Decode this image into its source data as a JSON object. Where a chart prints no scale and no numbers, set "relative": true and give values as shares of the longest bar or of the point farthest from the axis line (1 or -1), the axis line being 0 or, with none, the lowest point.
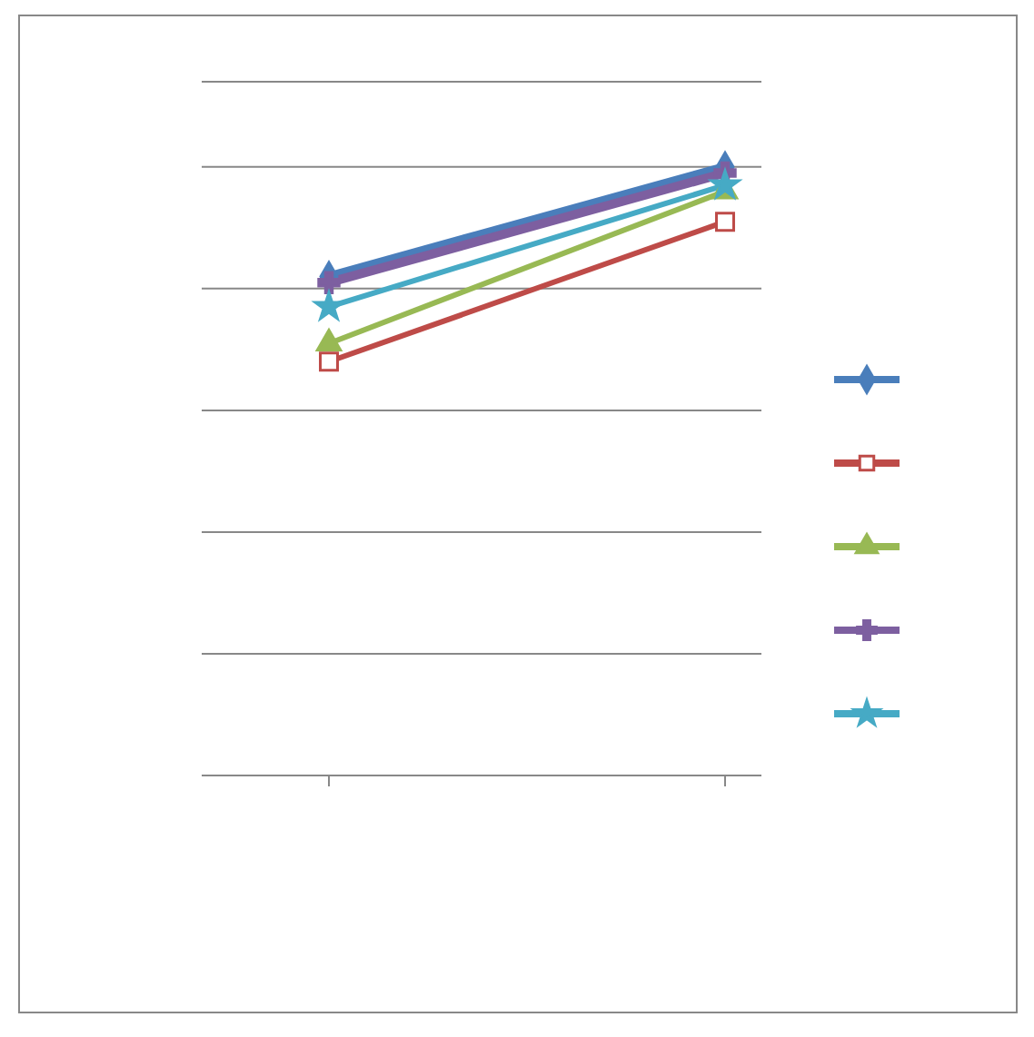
{
  "chart_data": {
    "type": "line",
    "relative": true,
    "categories": [
      null,
      null
    ],
    "grid": "y",
    "series": [
      {
        "color": "#4a7ebb",
        "marker": "diamond",
        "values": [
          0.82,
          1.0
        ]
      },
      {
        "color": "#be4b48",
        "marker": "square",
        "values": [
          0.68,
          0.91
        ]
      },
      {
        "color": "#98b954",
        "marker": "triangle",
        "values": [
          0.71,
          0.96
        ]
      },
      {
        "color": "#7d5fa0",
        "marker": "cross",
        "values": [
          0.81,
          0.99
        ]
      },
      {
        "color": "#46aac5",
        "marker": "star",
        "values": [
          0.77,
          0.97
        ]
      }
    ]
  }
}
